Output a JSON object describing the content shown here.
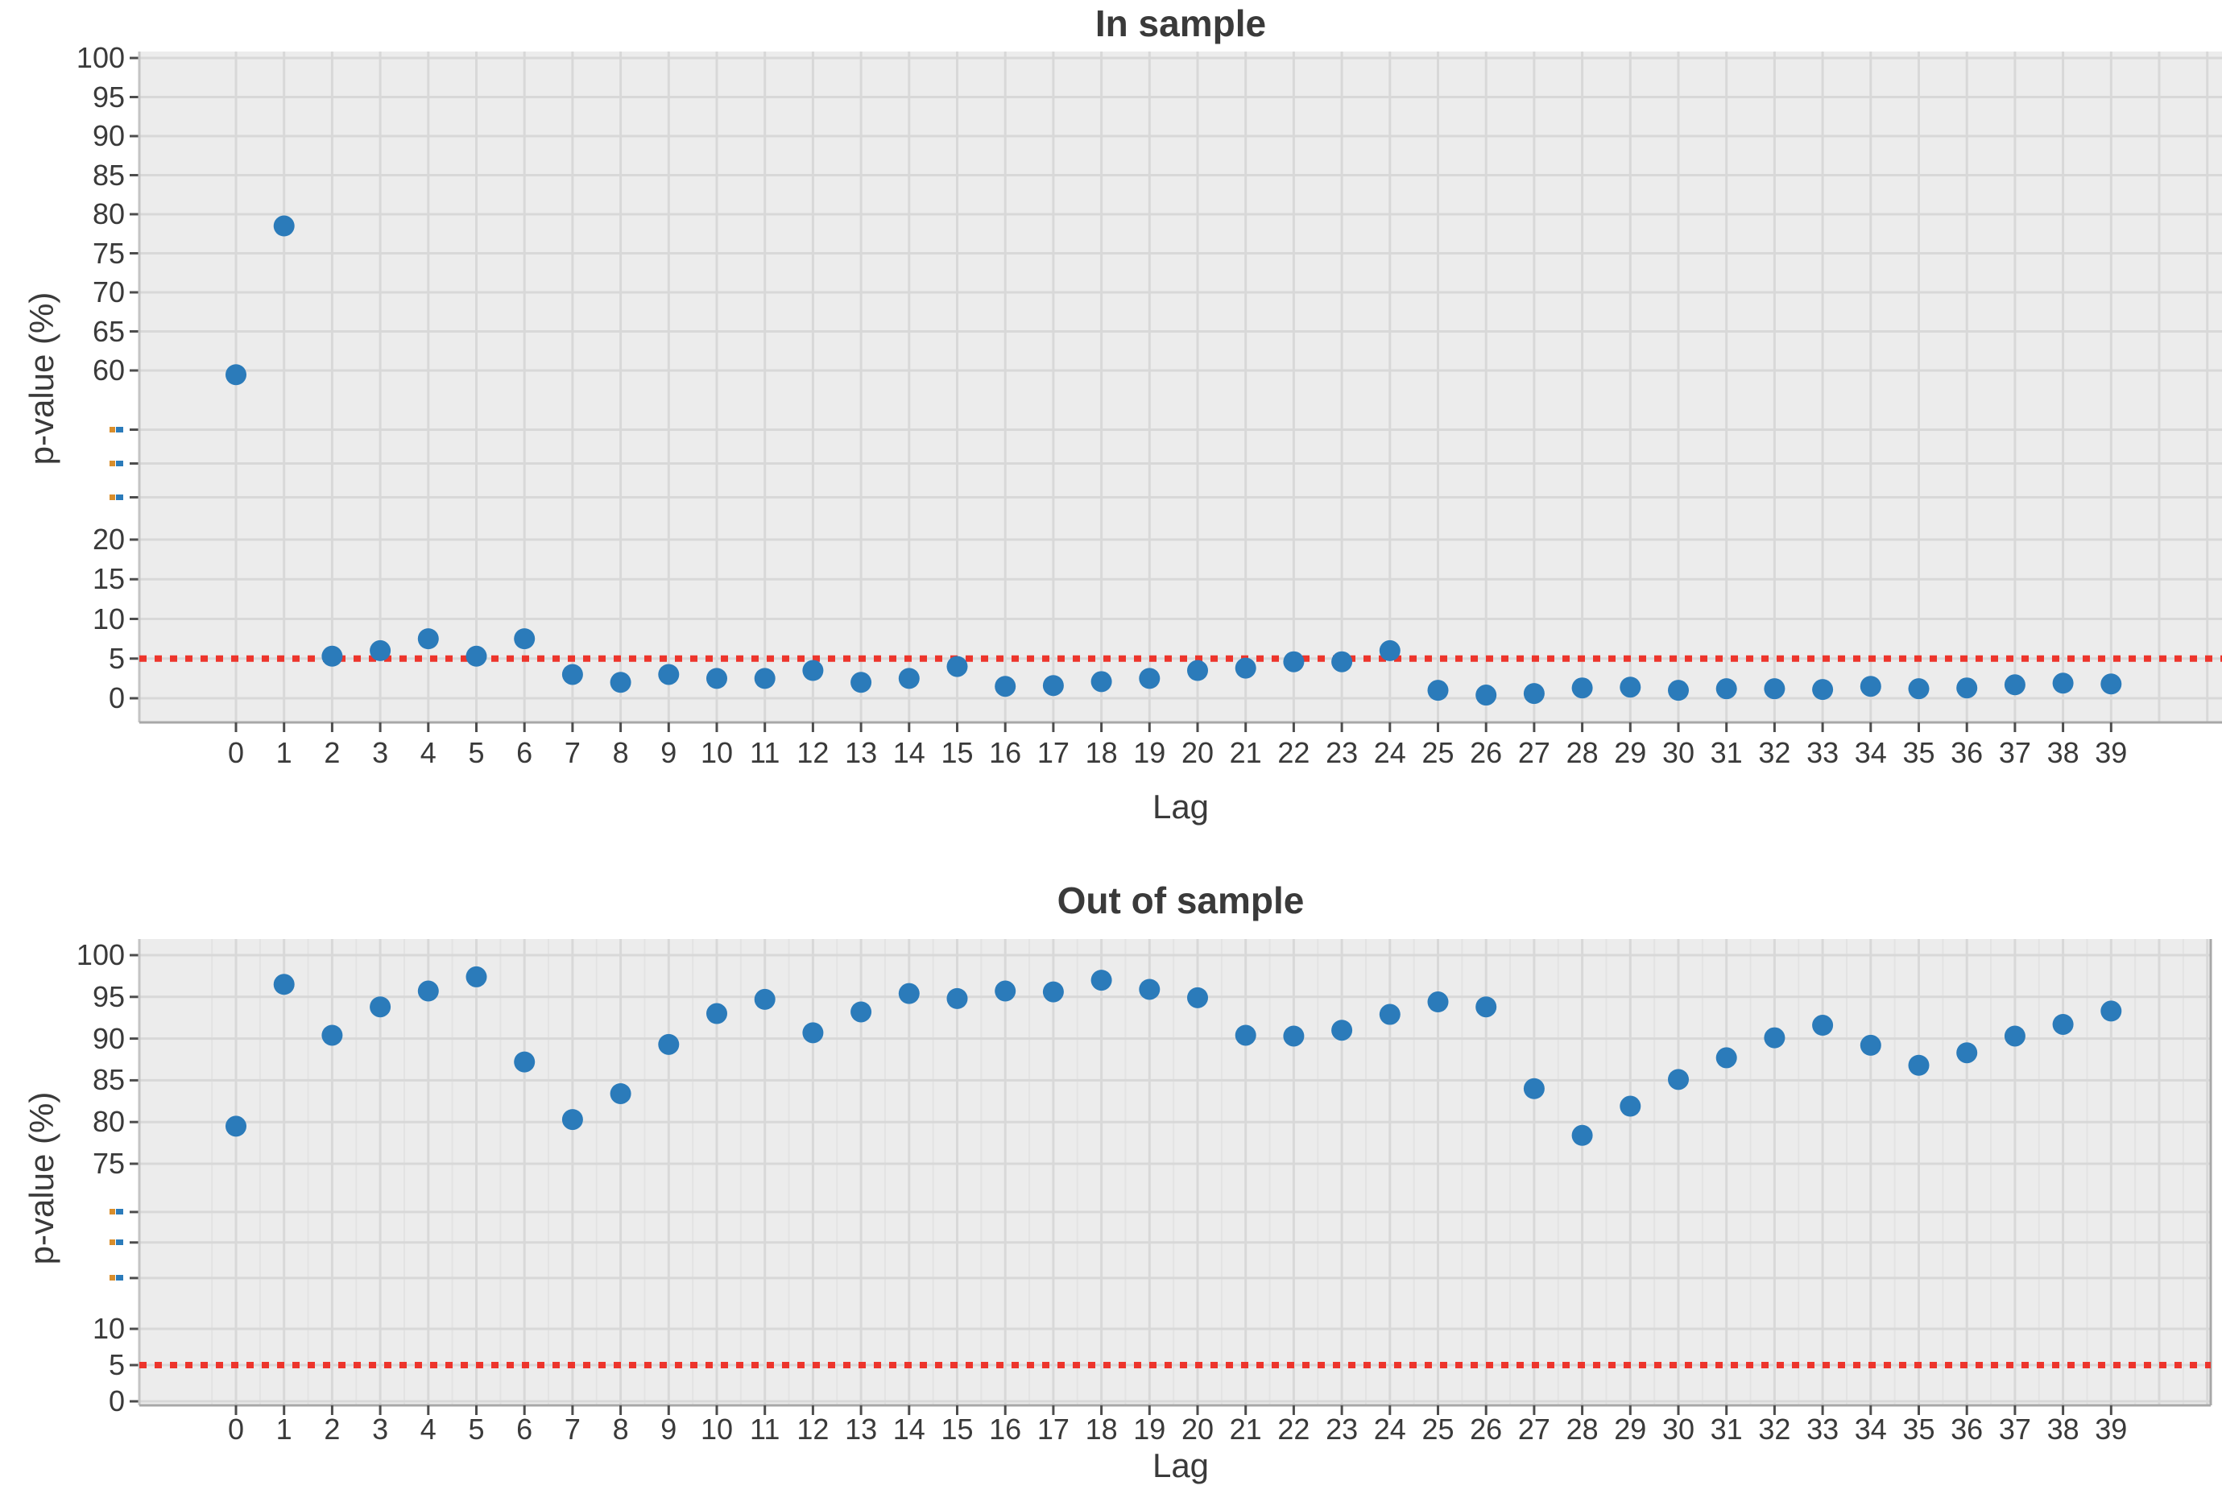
{
  "figure": {
    "background": "#ffffff",
    "plot_background": "#ececec",
    "gridline_color": "#d8d8d8",
    "minor_gridline_color": "#e3e3e3",
    "marker_color": "#2b7bba",
    "threshold_color": "#ed352c"
  },
  "chart_data": [
    {
      "type": "scatter",
      "title": "In sample",
      "xlabel": "Lag",
      "ylabel": "p-value (%)",
      "x": [
        0,
        1,
        2,
        3,
        4,
        5,
        6,
        7,
        8,
        9,
        10,
        11,
        12,
        13,
        14,
        15,
        16,
        17,
        18,
        19,
        20,
        21,
        22,
        23,
        24,
        25,
        26,
        27,
        28,
        29,
        30,
        31,
        32,
        33,
        34,
        35,
        36,
        37,
        38,
        39
      ],
      "y": [
        59,
        78.5,
        5.3,
        6,
        7.5,
        5.3,
        7.5,
        3,
        2,
        3,
        2.5,
        2.5,
        3.5,
        2,
        2.5,
        4,
        1.5,
        1.6,
        2.1,
        2.5,
        3.5,
        3.8,
        4.6,
        4.6,
        6,
        1,
        0.4,
        0.6,
        1.3,
        1.4,
        1,
        1.2,
        1.2,
        1.1,
        1.5,
        1.2,
        1.3,
        1.7,
        1.9,
        1.8
      ],
      "x_tick_labels": [
        "0",
        "1",
        "2",
        "3",
        "4",
        "5",
        "6",
        "7",
        "8",
        "9",
        "10",
        "11",
        "12",
        "13",
        "14",
        "15",
        "16",
        "17",
        "18",
        "19",
        "20",
        "21",
        "22",
        "23",
        "24",
        "25",
        "26",
        "27",
        "28",
        "29",
        "30",
        "31",
        "32",
        "33",
        "34",
        "35",
        "36",
        "37",
        "38",
        "39"
      ],
      "y_ticks": [
        {
          "label": "100",
          "v": 100
        },
        {
          "label": "95",
          "v": 95
        },
        {
          "label": "90",
          "v": 90
        },
        {
          "label": "85",
          "v": 85
        },
        {
          "label": "80",
          "v": 80
        },
        {
          "label": "75",
          "v": 75
        },
        {
          "label": "70",
          "v": 70
        },
        {
          "label": "65",
          "v": 65
        },
        {
          "label": "60",
          "v": 60
        },
        {
          "label": "-",
          "v": 46,
          "artifact": true
        },
        {
          "label": "-",
          "v": 38,
          "artifact": true
        },
        {
          "label": "-",
          "v": 30,
          "artifact": true
        },
        {
          "label": "20",
          "v": 20
        },
        {
          "label": "15",
          "v": 15
        },
        {
          "label": "10",
          "v": 10
        },
        {
          "label": "5",
          "v": 5
        },
        {
          "label": "0",
          "v": 0
        }
      ],
      "threshold": {
        "value": 5,
        "style": "dotted"
      },
      "ylim": [
        0,
        103
      ],
      "grid": true,
      "legend": false
    },
    {
      "type": "scatter",
      "title": "Out of sample",
      "xlabel": "Lag",
      "ylabel": "p-value (%)",
      "x": [
        0,
        1,
        2,
        3,
        4,
        5,
        6,
        7,
        8,
        9,
        10,
        11,
        12,
        13,
        14,
        15,
        16,
        17,
        18,
        19,
        20,
        21,
        22,
        23,
        24,
        25,
        26,
        27,
        28,
        29,
        30,
        31,
        32,
        33,
        34,
        35,
        36,
        37,
        38,
        39
      ],
      "y": [
        79.5,
        96.5,
        90.4,
        93.8,
        95.7,
        97.4,
        87.2,
        80.3,
        83.4,
        89.3,
        93,
        94.7,
        90.7,
        93.2,
        95.4,
        94.8,
        95.7,
        95.6,
        97,
        95.9,
        94.9,
        90.4,
        90.3,
        91,
        92.9,
        94.4,
        93.8,
        84,
        78.4,
        81.9,
        85.1,
        87.7,
        90.1,
        91.6,
        89.2,
        86.8,
        88.3,
        90.3,
        91.7,
        93.3
      ],
      "x_tick_labels": [
        "0",
        "1",
        "2",
        "3",
        "4",
        "5",
        "6",
        "7",
        "8",
        "9",
        "10",
        "11",
        "12",
        "13",
        "14",
        "15",
        "16",
        "17",
        "18",
        "19",
        "20",
        "21",
        "22",
        "23",
        "24",
        "25",
        "26",
        "27",
        "28",
        "29",
        "30",
        "31",
        "32",
        "33",
        "34",
        "35",
        "36",
        "37",
        "38",
        "39"
      ],
      "y_ticks": [
        {
          "label": "100",
          "v": 100
        },
        {
          "label": "95",
          "v": 95
        },
        {
          "label": "90",
          "v": 90
        },
        {
          "label": "85",
          "v": 85
        },
        {
          "label": "80",
          "v": 80
        },
        {
          "label": "75",
          "v": 75
        },
        {
          "label": "-",
          "v": 56,
          "artifact": true
        },
        {
          "label": "-",
          "v": 44,
          "artifact": true
        },
        {
          "label": "-",
          "v": 30,
          "artifact": true
        },
        {
          "label": "10",
          "v": 10
        },
        {
          "label": "5",
          "v": 5
        },
        {
          "label": "0",
          "v": 0
        }
      ],
      "threshold": {
        "value": 5,
        "style": "dotted"
      },
      "ylim": [
        0,
        103
      ],
      "grid": true,
      "legend": false
    }
  ]
}
